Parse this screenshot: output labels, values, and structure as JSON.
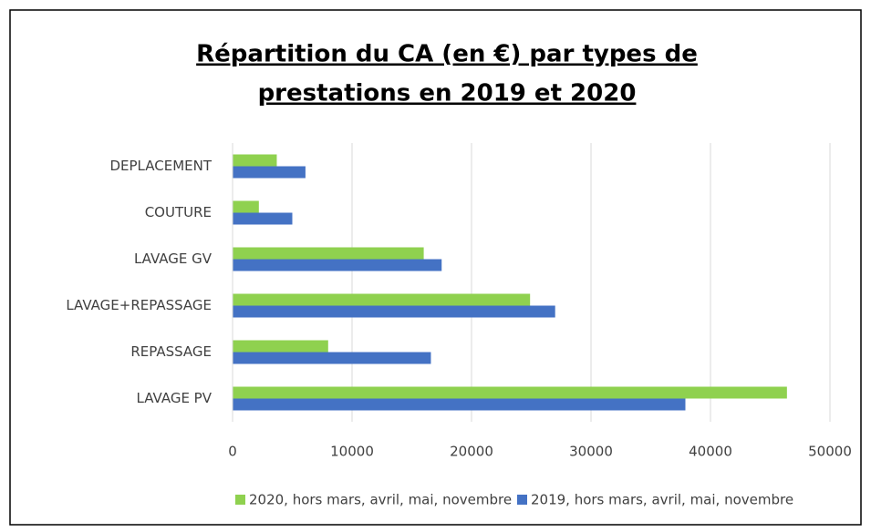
{
  "chart_data": {
    "type": "bar",
    "orientation": "horizontal",
    "title": [
      "Répartition du CA (en €) par types de",
      "prestations en 2019 et 2020"
    ],
    "categories": [
      "DEPLACEMENT",
      "COUTURE",
      "LAVAGE GV",
      "LAVAGE+REPASSAGE",
      "REPASSAGE",
      "LAVAGE PV"
    ],
    "series": [
      {
        "name": "2020, hors mars, avril, mai, novembre",
        "color": "#8fd14f",
        "values": [
          3700,
          2200,
          16000,
          24900,
          8000,
          46400
        ]
      },
      {
        "name": "2019, hors mars, avril, mai, novembre",
        "color": "#4472c4",
        "values": [
          6100,
          5000,
          17500,
          27000,
          16600,
          37900
        ]
      }
    ],
    "xlim": [
      0,
      50000
    ],
    "xticks": [
      0,
      10000,
      20000,
      30000,
      40000,
      50000
    ],
    "grid": true,
    "legend": "bottom"
  }
}
